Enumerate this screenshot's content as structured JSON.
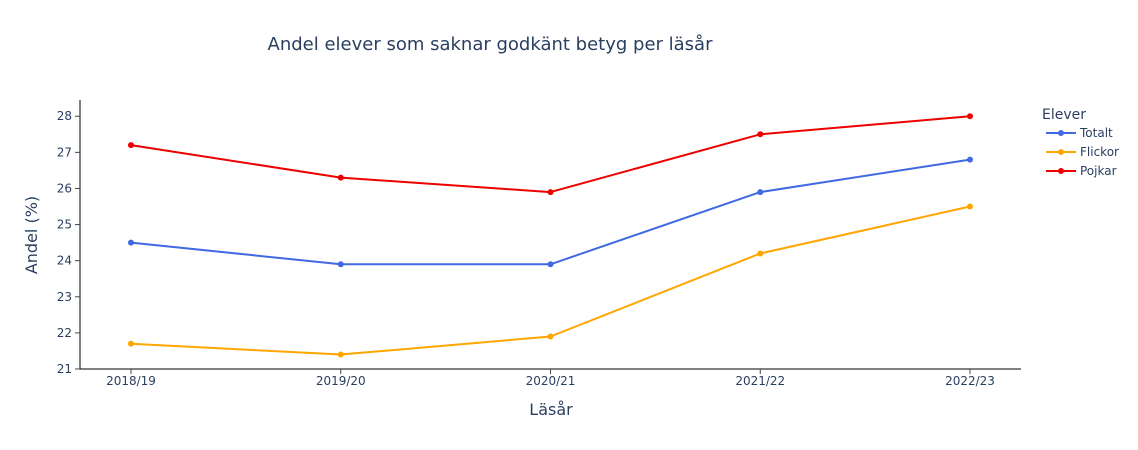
{
  "chart_data": {
    "type": "line",
    "title": "Andel elever som saknar godkänt betyg per läsår",
    "xlabel": "Läsår",
    "ylabel": "Andel (%)",
    "categories": [
      "2018/19",
      "2019/20",
      "2020/21",
      "2021/22",
      "2022/23"
    ],
    "ylim": [
      21,
      28.45
    ],
    "yticks": [
      21,
      22,
      23,
      24,
      25,
      26,
      27,
      28
    ],
    "grid": false,
    "legend": {
      "title": "Elever",
      "placement": "top-right"
    },
    "series": [
      {
        "name": "Totalt",
        "color": "#4169e1",
        "values": [
          24.5,
          23.9,
          23.9,
          25.9,
          26.8
        ]
      },
      {
        "name": "Flickor",
        "color": "#ffa500",
        "values": [
          21.7,
          21.4,
          21.9,
          24.2,
          25.5
        ]
      },
      {
        "name": "Pojkar",
        "color": "#ee0000",
        "values": [
          27.2,
          26.3,
          25.9,
          27.5,
          28.0
        ]
      }
    ]
  }
}
